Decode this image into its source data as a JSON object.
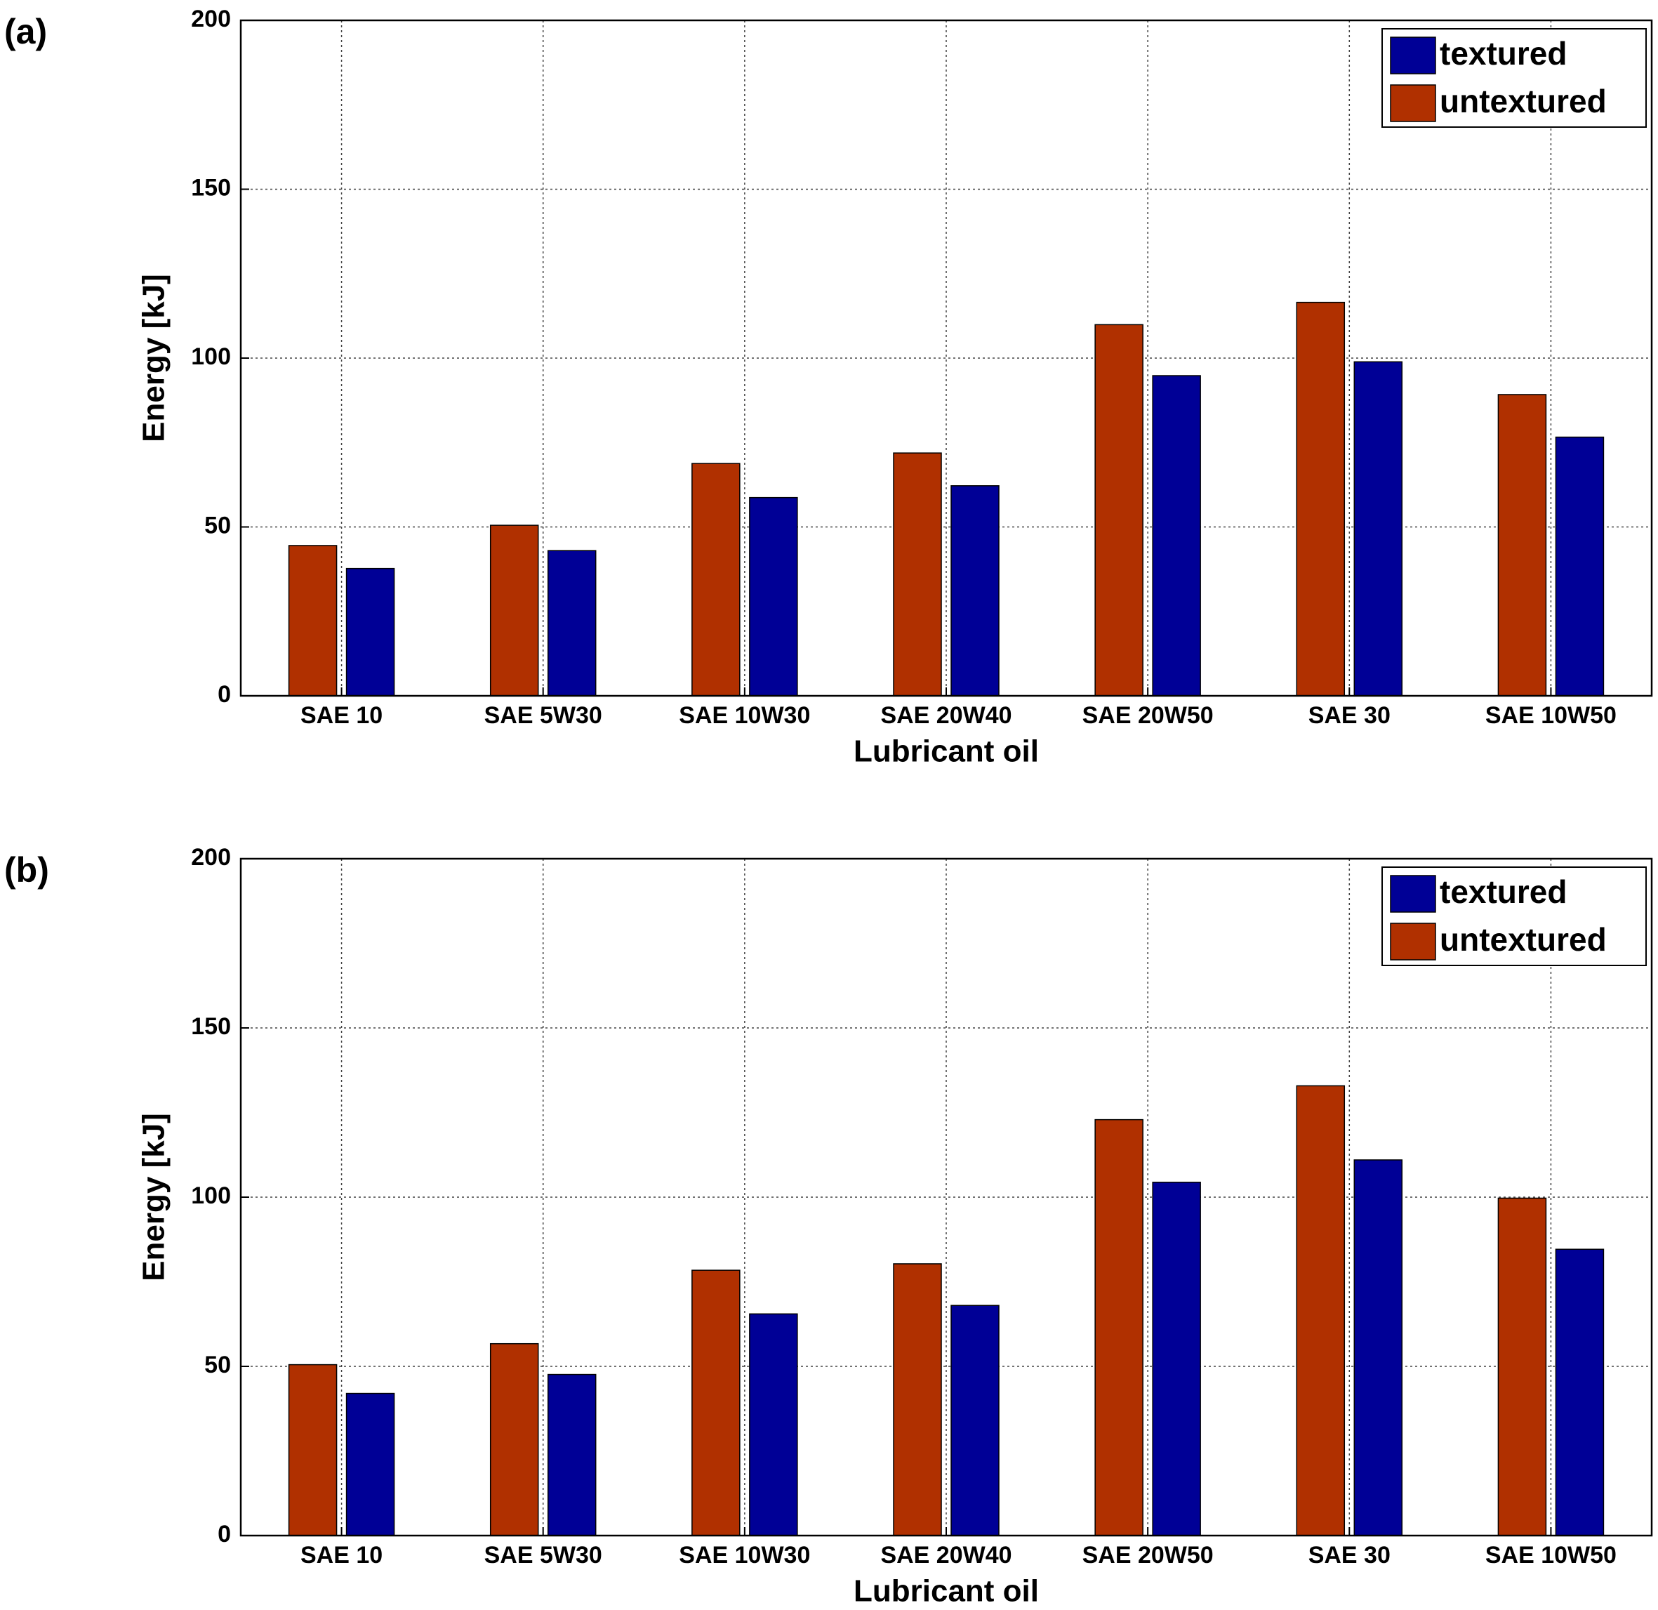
{
  "chart_data": [
    {
      "type": "bar",
      "panel_label": "(a)",
      "xlabel": "Lubricant oil",
      "ylabel": "Energy [kJ]",
      "categories": [
        "SAE 10",
        "SAE 5W30",
        "SAE 10W30",
        "SAE 20W40",
        "SAE 20W50",
        "SAE 30",
        "SAE 10W50"
      ],
      "series": [
        {
          "name": "untextured",
          "color": "#b03000",
          "values": [
            44.5,
            50.5,
            68.8,
            71.9,
            109.9,
            116.5,
            89.2
          ]
        },
        {
          "name": "textured",
          "color": "#000096",
          "values": [
            37.7,
            43,
            58.7,
            62.2,
            94.8,
            98.9,
            76.6
          ]
        }
      ],
      "ylim": [
        0,
        200
      ],
      "yticks": [
        0,
        50,
        100,
        150,
        200
      ],
      "grid": true,
      "legend": "upper right"
    },
    {
      "type": "bar",
      "panel_label": "(b)",
      "xlabel": "Lubricant oil",
      "ylabel": "Energy [kJ]",
      "categories": [
        "SAE 10",
        "SAE 5W30",
        "SAE 10W30",
        "SAE 20W40",
        "SAE 20W50",
        "SAE 30",
        "SAE 10W50"
      ],
      "series": [
        {
          "name": "untextured",
          "color": "#b03000",
          "values": [
            50.5,
            56.7,
            78.4,
            80.3,
            122.9,
            132.9,
            99.7
          ]
        },
        {
          "name": "textured",
          "color": "#000096",
          "values": [
            42,
            47.6,
            65.5,
            68,
            104.4,
            111,
            84.6
          ]
        }
      ],
      "ylim": [
        0,
        200
      ],
      "yticks": [
        0,
        50,
        100,
        150,
        200
      ],
      "grid": true,
      "legend": "upper right"
    }
  ]
}
